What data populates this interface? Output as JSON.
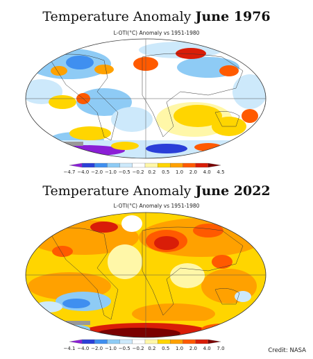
{
  "panels": [
    {
      "title_prefix": "Temperature Anomaly ",
      "title_bold": "June 1976",
      "subtitle": "L-OTI(°C) Anomaly vs 1951-1980",
      "colorbar_labels": [
        "−4.7",
        "−4.0",
        "−2.0",
        "−1.0",
        "−0.5",
        "−0.2",
        "0.2",
        "0.5",
        "1.0",
        "2.0",
        "4.0",
        "4.5"
      ]
    },
    {
      "title_prefix": "Temperature Anomaly ",
      "title_bold": "June 2022",
      "subtitle": "L-OTI(°C) Anomaly vs 1951-1980",
      "colorbar_labels": [
        "−4.1",
        "−4.0",
        "−2.0",
        "−1.0",
        "−0.5",
        "−0.2",
        "0.2",
        "0.5",
        "1.0",
        "2.0",
        "4.0",
        "7.0"
      ]
    }
  ],
  "colorbar_colors": [
    "#8a1fd6",
    "#2a3fd8",
    "#3f8ff0",
    "#8ecbf5",
    "#cde9fb",
    "#ffffff",
    "#fff7a8",
    "#ffd500",
    "#ffa100",
    "#ff5a00",
    "#d91d08",
    "#7a0000"
  ],
  "credit": "Credit: NASA"
}
